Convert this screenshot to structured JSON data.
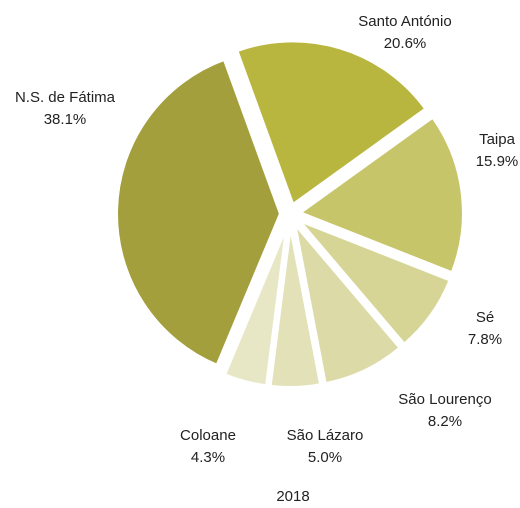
{
  "chart_data": {
    "type": "pie",
    "title": "2018",
    "categories": [
      "Santo António",
      "Taipa",
      "Sé",
      "São Lourenço",
      "São Lázaro",
      "Coloane",
      "N.S. de Fátima"
    ],
    "values": [
      20.6,
      15.9,
      7.8,
      8.2,
      5.0,
      4.3,
      38.1
    ],
    "value_labels": [
      "20.6%",
      "15.9%",
      "7.8%",
      "8.2%",
      "5.0%",
      "4.3%",
      "38.1%"
    ],
    "colors": [
      "#b9b640",
      "#c7c56a",
      "#d6d596",
      "#dcdba8",
      "#e2e1b7",
      "#e8e7c5",
      "#a39f3d"
    ]
  }
}
